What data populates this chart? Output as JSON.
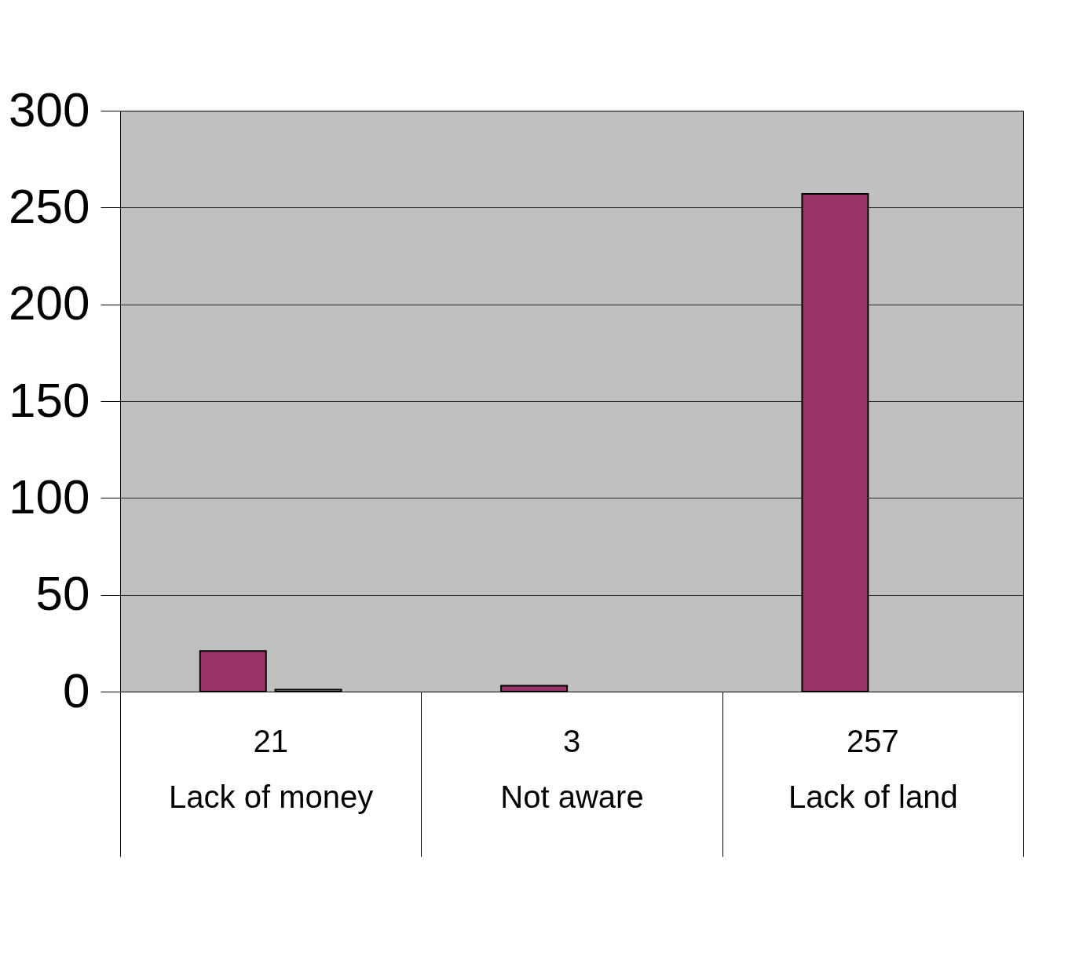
{
  "chart_data": {
    "type": "bar",
    "categories": [
      "Lack of money",
      "Not aware",
      "Lack of land"
    ],
    "series": [
      {
        "color": "#993366",
        "values": [
          21,
          3,
          257
        ],
        "value_labels": [
          "21",
          "3",
          "257"
        ]
      },
      {
        "color": "#c0c0c0",
        "values": [
          1,
          null,
          null
        ]
      }
    ],
    "ylim": [
      0,
      300
    ],
    "yticks": [
      0,
      50,
      100,
      150,
      200,
      250,
      300
    ],
    "grid": "y"
  }
}
